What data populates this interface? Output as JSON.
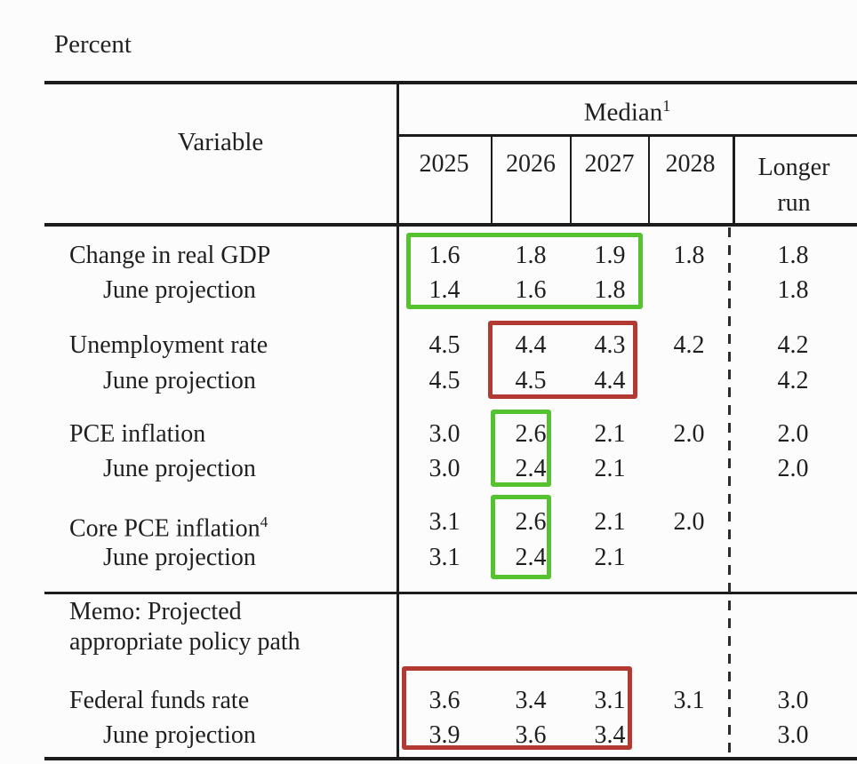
{
  "page": {
    "unit_label": "Percent"
  },
  "colors": {
    "highlight_green": "#55c22f",
    "highlight_red": "#b33a33",
    "rule": "#1c1c1c",
    "text": "#1f1f1f",
    "background": "#fcfcfc"
  },
  "table": {
    "header": {
      "variable_label": "Variable",
      "group_label": "Median",
      "group_superscript": "1",
      "columns": [
        "2025",
        "2026",
        "2027",
        "2028",
        "Longer run"
      ]
    },
    "rows": [
      {
        "label": "Change in real GDP",
        "values": [
          "1.6",
          "1.8",
          "1.9",
          "1.8",
          "1.8"
        ]
      },
      {
        "label": "June projection",
        "values": [
          "1.4",
          "1.6",
          "1.8",
          "",
          "1.8"
        ]
      },
      {
        "label": "Unemployment rate",
        "values": [
          "4.5",
          "4.4",
          "4.3",
          "4.2",
          "4.2"
        ]
      },
      {
        "label": "June projection",
        "values": [
          "4.5",
          "4.5",
          "4.4",
          "",
          "4.2"
        ]
      },
      {
        "label": "PCE inflation",
        "values": [
          "3.0",
          "2.6",
          "2.1",
          "2.0",
          "2.0"
        ]
      },
      {
        "label": "June projection",
        "values": [
          "3.0",
          "2.4",
          "2.1",
          "",
          "2.0"
        ]
      },
      {
        "label": "Core PCE inflation",
        "superscript": "4",
        "values": [
          "3.1",
          "2.6",
          "2.1",
          "2.0",
          ""
        ]
      },
      {
        "label": "June projection",
        "values": [
          "3.1",
          "2.4",
          "2.1",
          "",
          ""
        ]
      },
      {
        "label": "Federal funds rate",
        "values": [
          "3.6",
          "3.4",
          "3.1",
          "3.1",
          "3.0"
        ]
      },
      {
        "label": "June projection",
        "values": [
          "3.9",
          "3.6",
          "3.4",
          "",
          "3.0"
        ]
      }
    ],
    "memo": {
      "line1": "Memo: Projected",
      "line2": "appropriate policy path"
    },
    "highlights": [
      {
        "series": "Change in real GDP and June projection",
        "years": "2025-2027",
        "color": "#55c22f"
      },
      {
        "series": "Unemployment rate and June projection",
        "years": "2026-2027",
        "color": "#b33a33"
      },
      {
        "series": "PCE inflation and June projection",
        "years": "2026",
        "color": "#55c22f"
      },
      {
        "series": "Core PCE inflation and June projection",
        "years": "2026",
        "color": "#55c22f"
      },
      {
        "series": "Federal funds rate and June projection",
        "years": "2025-2027",
        "color": "#b33a33"
      }
    ]
  }
}
